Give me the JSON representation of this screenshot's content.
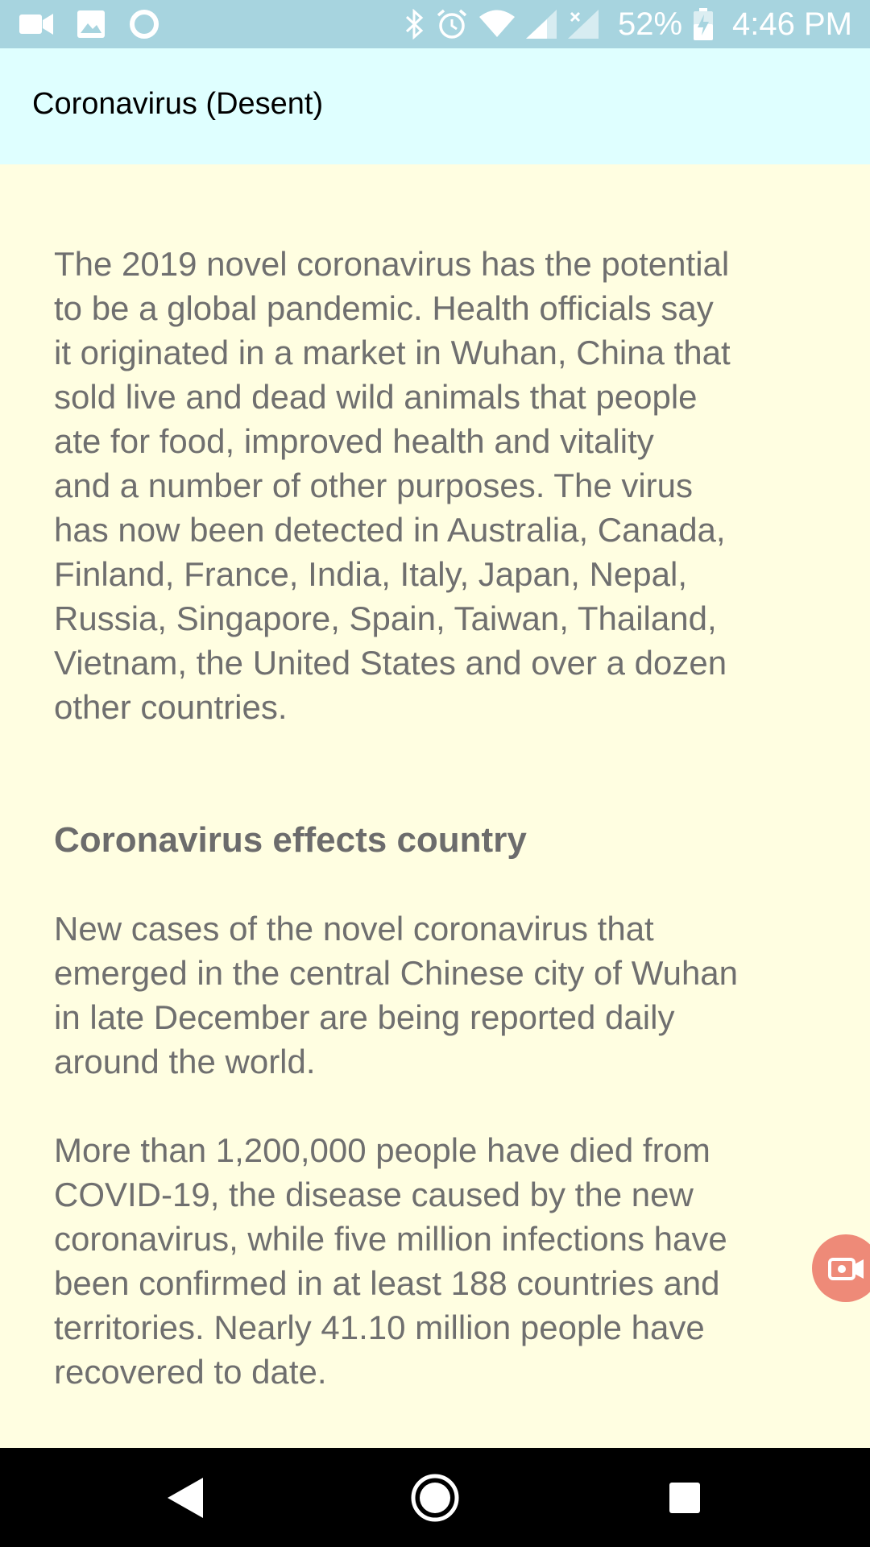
{
  "status_bar": {
    "left_icons": [
      "video-camera-icon",
      "image-icon",
      "circle-icon"
    ],
    "right_icons": [
      "bluetooth-icon",
      "alarm-icon",
      "wifi-icon",
      "cell-signal-icon",
      "cell-signal-no-service-icon",
      "battery-charging-icon"
    ],
    "battery": "52%",
    "time": "4:46 PM"
  },
  "app_bar": {
    "title": "Coronavirus (Desent)"
  },
  "content": {
    "intro_lines": [
      "The 2019 novel coronavirus has the potential",
      "to be a global pandemic. Health officials say",
      "it originated in a market in Wuhan, China that",
      "sold live and dead wild animals that people",
      "ate for food, improved health and vitality",
      "and a number of other purposes. The virus",
      "has now been detected in Australia, Canada,",
      "Finland, France, India, Italy, Japan, Nepal,",
      "Russia, Singapore, Spain, Taiwan, Thailand,",
      "Vietnam, the United States and over a dozen",
      "other countries."
    ],
    "heading": "Coronavirus effects country",
    "para2_lines": [
      "New cases of the novel coronavirus that",
      "emerged in the central Chinese city of Wuhan",
      "in late December are being reported daily",
      "around the world."
    ],
    "para3_lines": [
      "More than 1,200,000 people have died from",
      "COVID-19, the disease caused by the new",
      "coronavirus, while five million infections have",
      "been confirmed in at least 188 countries and",
      "territories. Nearly 41.10 million people have",
      "recovered to date."
    ]
  },
  "floating_button": {
    "icon": "screen-recorder-icon",
    "color": "#ee8a78"
  },
  "nav_bar": {
    "buttons": [
      "back-icon",
      "home-icon",
      "recents-icon"
    ]
  },
  "colors": {
    "status_bar": "#a7d4df",
    "app_bar": "#dfffff",
    "background": "#fffee1",
    "text": "#6f6f6f"
  }
}
